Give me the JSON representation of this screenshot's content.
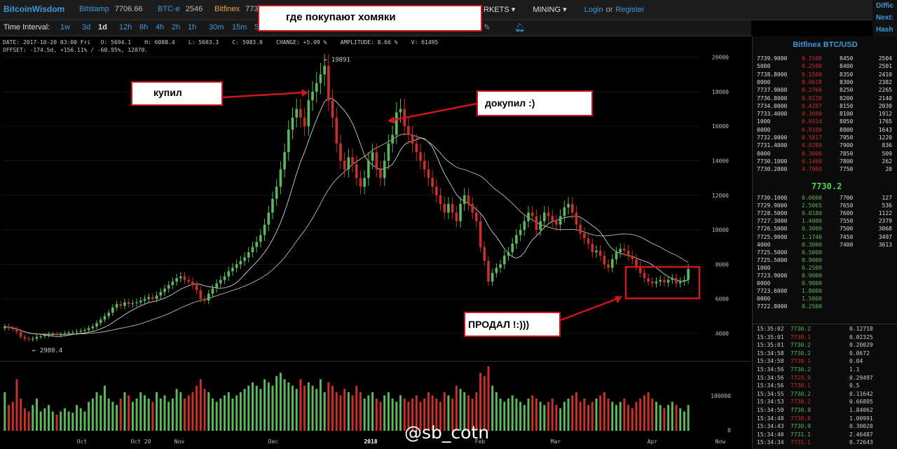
{
  "topbar": {
    "logo": "BitcoinWisdom",
    "markets": [
      {
        "name": "Bitstamp",
        "price": "7706.66"
      },
      {
        "name": "BTC-e",
        "price": "2546"
      },
      {
        "name": "Bitfinex",
        "price": "773"
      }
    ],
    "nav": [
      "RKETS ▾",
      "MINING ▾"
    ],
    "login": "Login",
    "or": "or",
    "register": "Register"
  },
  "side": [
    "Diffic",
    "Next:",
    "Hash"
  ],
  "interval": {
    "label": "Time Interval:",
    "items": [
      "1w",
      "3d",
      "1d",
      "12h",
      "6h",
      "4h",
      "2h",
      "1h",
      "30m",
      "15m",
      "5"
    ],
    "selected": "1d"
  },
  "info": {
    "line1": "DATE: 2017-10-20 03:00 Fri   O: 5694.1    H: 6088.4    L: 5603.3    C: 5983.8    CHANGE: +5.09 %    AMPLITUDE: 8.66 %    V: 61495",
    "line2": "OFFSET: -174.5d, +156.11% / -60.95%, 12070."
  },
  "chart_data": {
    "type": "candlestick",
    "title": "",
    "y_ticks": [
      "20000",
      "18000",
      "16000",
      "14000",
      "12000",
      "10000",
      "8000",
      "6000",
      "4000"
    ],
    "volume_ticks": [
      "100000",
      "0"
    ],
    "x_ticks": [
      "Oct",
      "Oct 20",
      "Nov",
      "Dec",
      "2018",
      "Feb",
      "Mar",
      "Apr",
      "Now"
    ],
    "high_label": "← 19891",
    "low_label": "← 2980.4",
    "ylim": [
      3000,
      21000
    ],
    "closes": [
      4400,
      4300,
      4250,
      4100,
      3800,
      3700,
      3650,
      3700,
      3800,
      3850,
      3900,
      3950,
      3950,
      3900,
      3950,
      4000,
      4050,
      4050,
      4100,
      4150,
      4200,
      4300,
      4400,
      4600,
      4800,
      5000,
      5200,
      5500,
      5700,
      5600,
      5800,
      5700,
      5750,
      5800,
      5900,
      6000,
      6100,
      6000,
      6200,
      6400,
      6600,
      6800,
      7000,
      7200,
      7300,
      7100,
      7000,
      6800,
      6500,
      6000,
      5900,
      6300,
      6600,
      6900,
      7100,
      7300,
      7600,
      7800,
      8000,
      8200,
      8400,
      8700,
      9000,
      9300,
      9700,
      10300,
      11000,
      11800,
      12500,
      13500,
      14500,
      15800,
      16500,
      17000,
      16500,
      16000,
      17500,
      18000,
      18500,
      19000,
      19500,
      17500,
      16500,
      15000,
      14000,
      13500,
      14200,
      13800,
      13000,
      12500,
      13000,
      14000,
      14500,
      13500,
      13000,
      14000,
      15000,
      15500,
      16800,
      17000,
      16000,
      15500,
      15000,
      14500,
      14000,
      13500,
      13000,
      12500,
      12000,
      11500,
      11000,
      11500,
      11000,
      10500,
      11500,
      12000,
      11500,
      11000,
      10500,
      9000,
      8200,
      7000,
      7500,
      7800,
      8000,
      8500,
      8700,
      9200,
      9700,
      10000,
      10500,
      11000,
      10800,
      10000,
      10500,
      11000,
      10800,
      10500,
      10300,
      10800,
      11300,
      11500,
      11000,
      10300,
      9800,
      9500,
      9200,
      8700,
      8800,
      8500,
      8000,
      7800,
      8300,
      8700,
      8900,
      8800,
      8500,
      8300,
      7900,
      7500,
      7200,
      7000,
      6900,
      7000,
      7100,
      6950,
      7100,
      7200,
      6900,
      7000,
      7100,
      7730
    ],
    "volumes": [
      0.6,
      0.4,
      0.45,
      0.8,
      0.5,
      0.35,
      0.3,
      0.4,
      0.5,
      0.3,
      0.35,
      0.4,
      0.3,
      0.25,
      0.3,
      0.35,
      0.3,
      0.28,
      0.4,
      0.35,
      0.3,
      0.45,
      0.5,
      0.6,
      0.55,
      0.7,
      0.5,
      0.45,
      0.4,
      0.5,
      0.6,
      0.55,
      0.45,
      0.5,
      0.6,
      0.55,
      0.5,
      0.45,
      0.6,
      0.5,
      0.55,
      0.45,
      0.5,
      0.65,
      0.6,
      0.5,
      0.55,
      0.6,
      0.7,
      0.8,
      0.65,
      0.6,
      0.5,
      0.45,
      0.5,
      0.55,
      0.6,
      0.5,
      0.55,
      0.6,
      0.65,
      0.7,
      0.75,
      0.7,
      0.65,
      0.8,
      0.75,
      0.7,
      0.85,
      0.9,
      0.8,
      0.75,
      0.7,
      0.65,
      0.8,
      0.7,
      0.75,
      0.7,
      0.65,
      0.8,
      0.6,
      0.75,
      0.7,
      0.6,
      0.55,
      0.65,
      0.6,
      0.55,
      0.7,
      0.6,
      0.5,
      0.55,
      0.6,
      0.5,
      0.45,
      0.55,
      0.6,
      0.5,
      0.45,
      0.55,
      0.5,
      0.45,
      0.5,
      0.55,
      0.45,
      0.5,
      0.6,
      0.55,
      0.5,
      0.45,
      0.6,
      0.55,
      0.5,
      0.7,
      0.65,
      0.6,
      0.55,
      0.5,
      0.6,
      0.9,
      0.85,
      1.0,
      0.7,
      0.6,
      0.5,
      0.45,
      0.5,
      0.55,
      0.5,
      0.45,
      0.4,
      0.5,
      0.55,
      0.5,
      0.45,
      0.4,
      0.45,
      0.5,
      0.4,
      0.35,
      0.45,
      0.5,
      0.55,
      0.6,
      0.45,
      0.5,
      0.4,
      0.45,
      0.5,
      0.55,
      0.6,
      0.5,
      0.45,
      0.4,
      0.45,
      0.5,
      0.4,
      0.35,
      0.45,
      0.5,
      0.55,
      0.6,
      0.5,
      0.45,
      0.4,
      0.35,
      0.4,
      0.45,
      0.4,
      0.35,
      0.3,
      0.4
    ]
  },
  "orderbook": {
    "title": "Bitfinex BTC/USD",
    "asks": [
      [
        "7739.9000",
        "0.1500",
        "8450",
        "2504"
      ],
      [
        "5000",
        "0.2500",
        "8400",
        "2501"
      ],
      [
        "7738.8000",
        "0.1500",
        "8350",
        "2410"
      ],
      [
        "0000",
        "0.0618",
        "8300",
        "2382"
      ],
      [
        "7737.9000",
        "0.2760",
        "8250",
        "2265"
      ],
      [
        "7736.8000",
        "0.0120",
        "8200",
        "2140"
      ],
      [
        "7734.0000",
        "0.4287",
        "8150",
        "2030"
      ],
      [
        "7733.4000",
        "0.3000",
        "8100",
        "1912"
      ],
      [
        "1000",
        "0.0314",
        "8050",
        "1765"
      ],
      [
        "0000",
        "6.9100",
        "8000",
        "1643"
      ],
      [
        "7732.0000",
        "0.5817",
        "7950",
        "1220"
      ],
      [
        "7731.4000",
        "0.0280",
        "7900",
        "836"
      ],
      [
        "0000",
        "0.3000",
        "7850",
        "509"
      ],
      [
        "7730.1000",
        "0.1400",
        "7800",
        "262"
      ],
      [
        "7730.2000",
        "4.7980",
        "7750",
        "20"
      ]
    ],
    "last": "7730.2",
    "bids": [
      [
        "7730.1000",
        "0.0600",
        "7700",
        "127"
      ],
      [
        "7729.9000",
        "2.5065",
        "7650",
        "536"
      ],
      [
        "7728.5000",
        "0.0180",
        "7600",
        "1122"
      ],
      [
        "7727.3000",
        "1.4000",
        "7550",
        "2379"
      ],
      [
        "7726.5000",
        "0.3000",
        "7500",
        "3068"
      ],
      [
        "7725.9000",
        "1.1740",
        "7450",
        "3497"
      ],
      [
        "4000",
        "0.3000",
        "7400",
        "3613"
      ],
      [
        "7725.5000",
        "0.5000",
        "",
        ""
      ],
      [
        "7725.5000",
        "0.9000",
        "",
        ""
      ],
      [
        "1000",
        "0.2500",
        "",
        ""
      ],
      [
        "7723.9000",
        "0.9000",
        "",
        ""
      ],
      [
        "0000",
        "0.9000",
        "",
        ""
      ],
      [
        "7723.6000",
        "1.8000",
        "",
        ""
      ],
      [
        "0000",
        "1.5000",
        "",
        ""
      ],
      [
        "7722.8000",
        "0.2500",
        "",
        ""
      ]
    ],
    "trades": [
      [
        "15:35:02",
        "7730.2",
        "0.12718",
        "up"
      ],
      [
        "15:35:01",
        "7730.1",
        "0.02325",
        "down"
      ],
      [
        "15:35:01",
        "7730.2",
        "0.20029",
        "up"
      ],
      [
        "15:34:58",
        "7730.2",
        "0.0672",
        "up"
      ],
      [
        "15:34:58",
        "7730.1",
        "0.04",
        "down"
      ],
      [
        "15:34:56",
        "7730.2",
        "1.1",
        "up"
      ],
      [
        "15:34:56",
        "7729.9",
        "0.29497",
        "down"
      ],
      [
        "15:34:56",
        "7730.1",
        "0.5",
        "down"
      ],
      [
        "15:34:55",
        "7730.2",
        "0.11642",
        "up"
      ],
      [
        "15:34:53",
        "7730.2",
        "0.66805",
        "down"
      ],
      [
        "15:34:50",
        "7730.9",
        "1.84062",
        "up"
      ],
      [
        "15:34:48",
        "7730.8",
        "1.00991",
        "down"
      ],
      [
        "15:34:43",
        "7730.9",
        "0.30020",
        "up"
      ],
      [
        "15:34:40",
        "7731.1",
        "2.46487",
        "up"
      ],
      [
        "15:34:34",
        "7731.1",
        "0.72643",
        "down"
      ]
    ]
  },
  "annotations": {
    "title": "где покупают хомяки",
    "bought": "купил",
    "bought_more": "докупил :)",
    "sold": "ПРОДАЛ !:)))"
  },
  "watermark": "@sb_cotn",
  "colors": {
    "up": "#5cb85c",
    "down": "#c9302c",
    "accent": "#3a9bdc",
    "annotation_border": "#d0161d"
  }
}
